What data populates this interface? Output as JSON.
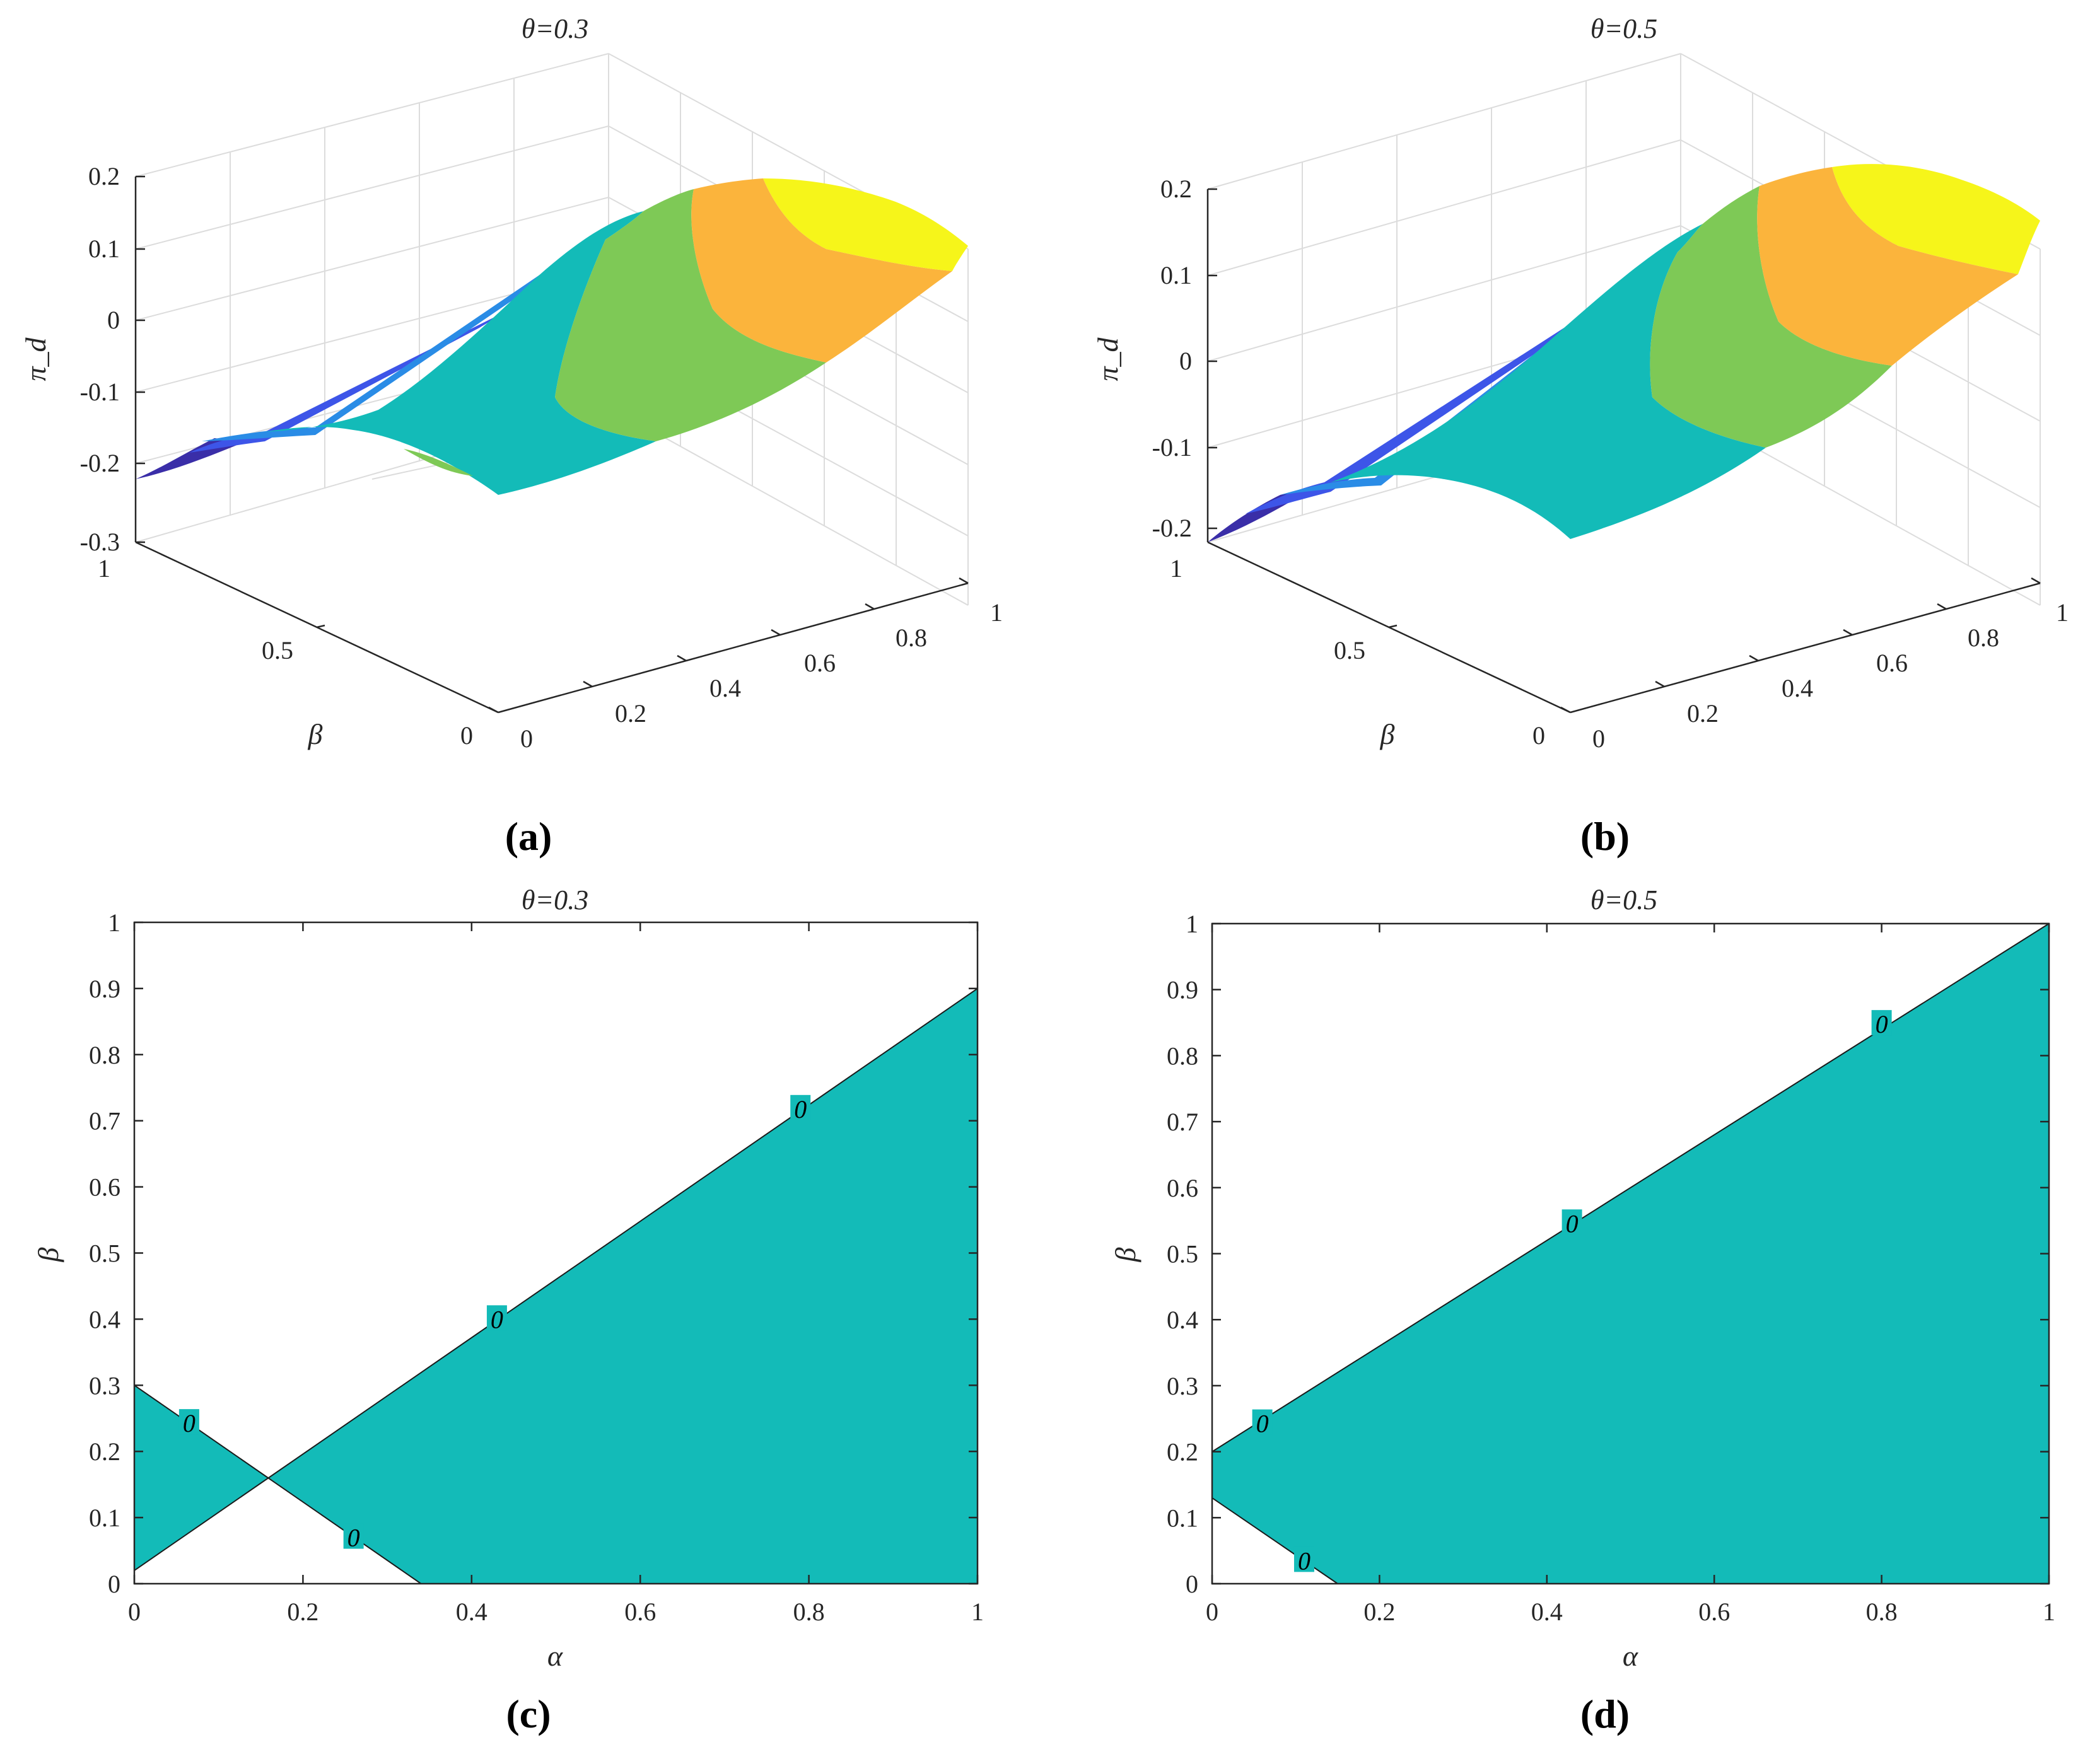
{
  "colors": {
    "teal": "#13BBB8",
    "dark_blue": "#3A2EA8",
    "mid_blue": "#3D55E8",
    "light_blue": "#2A8CE6",
    "green": "#7EC956",
    "orange": "#FBB43C",
    "yellow": "#F6F51A",
    "axis": "#262626",
    "grid": "#DCDCDC"
  },
  "chart_data": [
    {
      "panel": "a",
      "type": "surface",
      "title": "θ=0.3",
      "zlabel": "π_d",
      "ylabel": "β",
      "xlabel": "",
      "x_ticks": [
        "0",
        "0.2",
        "0.4",
        "0.6",
        "0.8",
        "1"
      ],
      "y_ticks": [
        "0",
        "0.5",
        "1"
      ],
      "z_ticks": [
        "-0.3",
        "-0.2",
        "-0.1",
        "0",
        "0.1",
        "0.2"
      ],
      "xlim": [
        0,
        1
      ],
      "ylim": [
        0,
        1
      ],
      "zlim": [
        -0.3,
        0.2
      ],
      "theta": 0.3,
      "color_bands": [
        "dark_blue",
        "mid_blue",
        "light_blue",
        "teal",
        "green",
        "orange",
        "yellow"
      ],
      "grid": true,
      "caption": "(a)"
    },
    {
      "panel": "b",
      "type": "surface",
      "title": "θ=0.5",
      "zlabel": "π_d",
      "ylabel": "β",
      "xlabel": "",
      "x_ticks": [
        "0",
        "0.2",
        "0.4",
        "0.6",
        "0.8",
        "1"
      ],
      "y_ticks": [
        "0",
        "0.5",
        "1"
      ],
      "z_ticks": [
        "-0.2",
        "-0.1",
        "0",
        "0.1",
        "0.2"
      ],
      "xlim": [
        0,
        1
      ],
      "ylim": [
        0,
        1
      ],
      "zlim": [
        -0.22,
        0.22
      ],
      "theta": 0.5,
      "color_bands": [
        "dark_blue",
        "mid_blue",
        "light_blue",
        "teal",
        "green",
        "orange",
        "yellow"
      ],
      "grid": true,
      "caption": "(b)"
    },
    {
      "panel": "c",
      "type": "contour-region",
      "title": "θ=0.3",
      "xlabel": "α",
      "ylabel": "β",
      "x_ticks": [
        "0",
        "0.2",
        "0.4",
        "0.6",
        "0.8",
        "1"
      ],
      "y_ticks": [
        "0",
        "0.1",
        "0.2",
        "0.3",
        "0.4",
        "0.5",
        "0.6",
        "0.7",
        "0.8",
        "0.9",
        "1"
      ],
      "xlim": [
        0,
        1
      ],
      "ylim": [
        0,
        1
      ],
      "regions": [
        [
          [
            0,
            0.3
          ],
          [
            0.16,
            0.16
          ],
          [
            0,
            0.02
          ]
        ],
        [
          [
            0.16,
            0.16
          ],
          [
            1,
            0.9
          ],
          [
            1,
            0
          ],
          [
            0.34,
            0
          ]
        ]
      ],
      "lines": [
        [
          [
            0,
            0.02
          ],
          [
            1,
            0.9
          ]
        ],
        [
          [
            0,
            0.3
          ],
          [
            0.34,
            0
          ]
        ]
      ],
      "contour_labels": [
        {
          "text": "0",
          "x": 0.065,
          "y": 0.243
        },
        {
          "text": "0",
          "x": 0.26,
          "y": 0.07
        },
        {
          "text": "0",
          "x": 0.43,
          "y": 0.4
        },
        {
          "text": "0",
          "x": 0.79,
          "y": 0.718
        }
      ],
      "caption": "(c)"
    },
    {
      "panel": "d",
      "type": "contour-region",
      "title": "θ=0.5",
      "xlabel": "α",
      "ylabel": "β",
      "x_ticks": [
        "0",
        "0.2",
        "0.4",
        "0.6",
        "0.8",
        "1"
      ],
      "y_ticks": [
        "0",
        "0.1",
        "0.2",
        "0.3",
        "0.4",
        "0.5",
        "0.6",
        "0.7",
        "0.8",
        "0.9",
        "1"
      ],
      "xlim": [
        0,
        1
      ],
      "ylim": [
        0,
        1
      ],
      "regions": [
        [
          [
            0,
            0.2
          ],
          [
            1,
            1
          ],
          [
            1,
            0
          ],
          [
            0.15,
            0
          ],
          [
            0,
            0.13
          ]
        ]
      ],
      "lines": [
        [
          [
            0,
            0.2
          ],
          [
            1,
            1
          ]
        ],
        [
          [
            0,
            0.13
          ],
          [
            0.15,
            0
          ]
        ]
      ],
      "contour_labels": [
        {
          "text": "0",
          "x": 0.06,
          "y": 0.243
        },
        {
          "text": "0",
          "x": 0.11,
          "y": 0.035
        },
        {
          "text": "0",
          "x": 0.43,
          "y": 0.546
        },
        {
          "text": "0",
          "x": 0.8,
          "y": 0.848
        }
      ],
      "caption": "(d)"
    }
  ]
}
